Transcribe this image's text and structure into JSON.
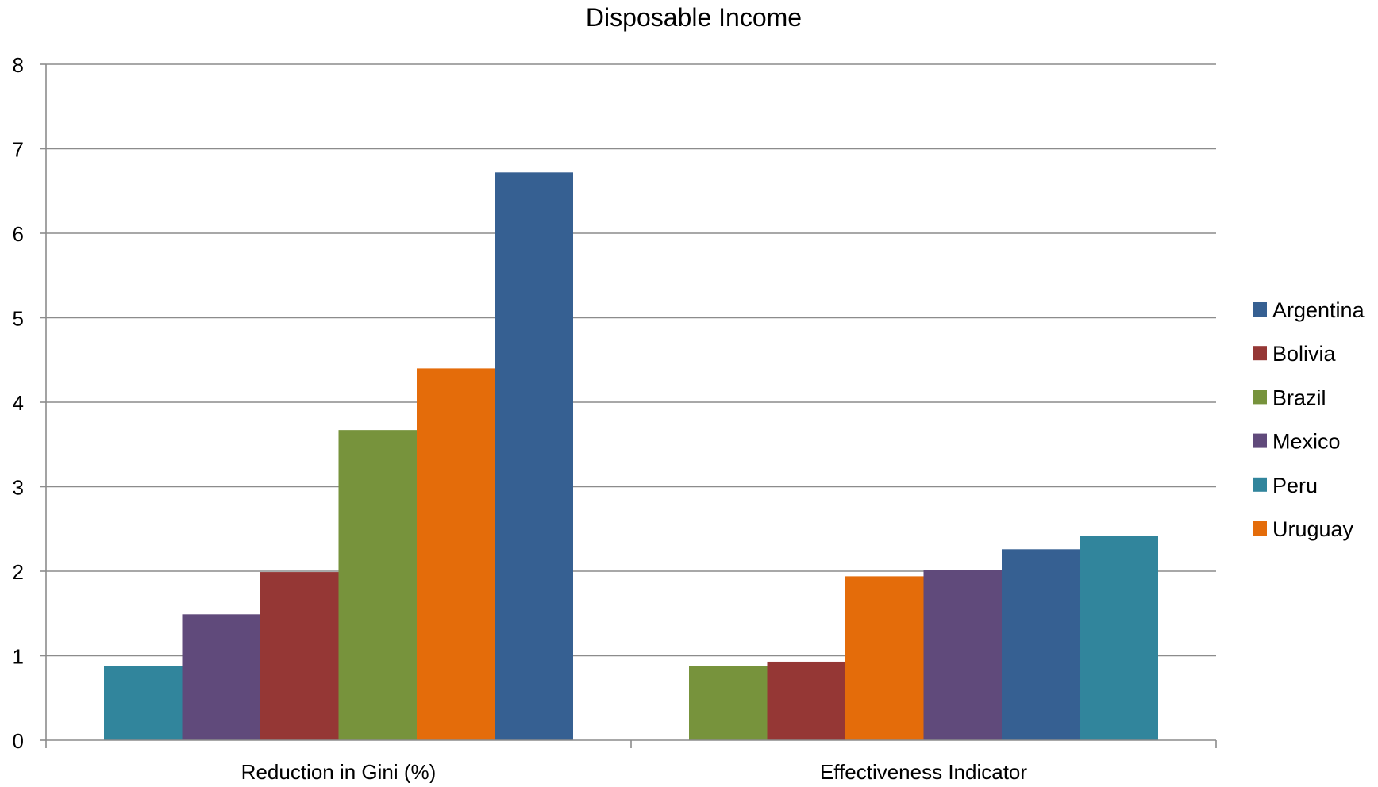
{
  "chart_data": {
    "type": "bar",
    "title": "Disposable Income",
    "xlabel": "",
    "ylabel": "",
    "ylim": [
      0,
      8
    ],
    "yticks": [
      0,
      1,
      2,
      3,
      4,
      5,
      6,
      7,
      8
    ],
    "grid": true,
    "legend_position": "right",
    "categories": [
      "Reduction in Gini (%)",
      "Effectiveness Indicator"
    ],
    "legend": [
      {
        "name": "Argentina",
        "color": "#366092"
      },
      {
        "name": "Bolivia",
        "color": "#953735"
      },
      {
        "name": "Brazil",
        "color": "#77933C"
      },
      {
        "name": "Mexico",
        "color": "#604A7B"
      },
      {
        "name": "Peru",
        "color": "#31859C"
      },
      {
        "name": "Uruguay",
        "color": "#E46C0A"
      }
    ],
    "groups": [
      {
        "category": "Reduction in Gini (%)",
        "bars": [
          {
            "series": "Peru",
            "value": 0.88
          },
          {
            "series": "Mexico",
            "value": 1.49
          },
          {
            "series": "Bolivia",
            "value": 1.99
          },
          {
            "series": "Brazil",
            "value": 3.67
          },
          {
            "series": "Uruguay",
            "value": 4.4
          },
          {
            "series": "Argentina",
            "value": 6.72
          }
        ]
      },
      {
        "category": "Effectiveness Indicator",
        "bars": [
          {
            "series": "Brazil",
            "value": 0.88
          },
          {
            "series": "Bolivia",
            "value": 0.93
          },
          {
            "series": "Uruguay",
            "value": 1.94
          },
          {
            "series": "Mexico",
            "value": 2.01
          },
          {
            "series": "Argentina",
            "value": 2.26
          },
          {
            "series": "Peru",
            "value": 2.42
          }
        ]
      }
    ]
  }
}
